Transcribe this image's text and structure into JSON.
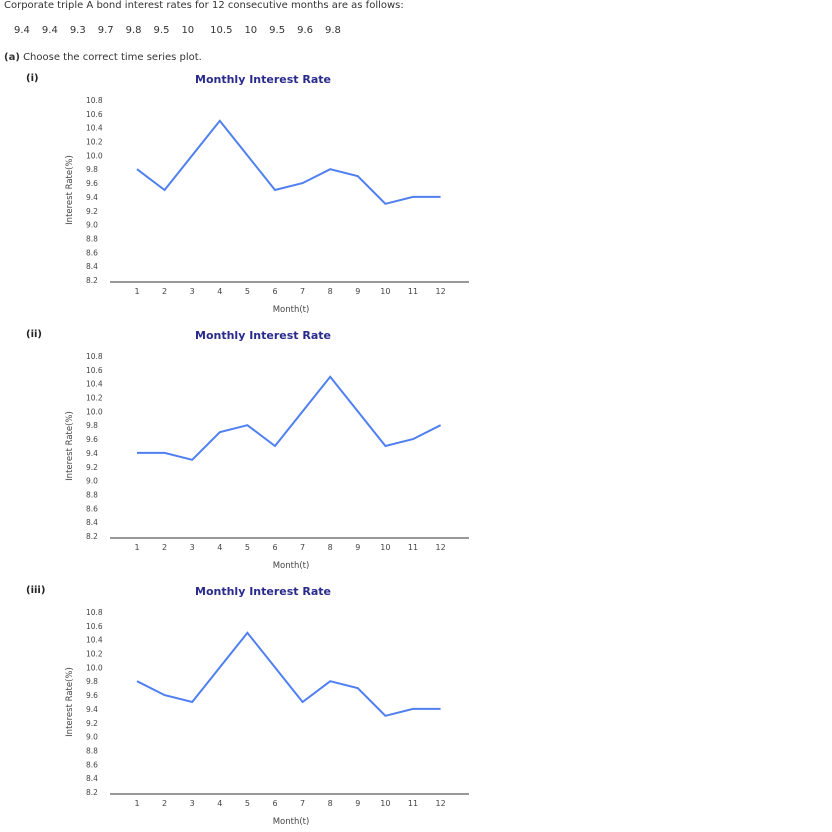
{
  "problem": {
    "intro": "Corporate triple A bond interest rates for 12 consecutive months are as follows:",
    "values": [
      "9.4",
      "9.4",
      "9.3",
      "9.7",
      "9.8",
      "9.5",
      "10",
      "10.5",
      "10",
      "9.5",
      "9.6",
      "9.8"
    ],
    "question_part": "(a)",
    "question_text": " Choose the correct time series plot."
  },
  "options": [
    {
      "label": "(i)",
      "title": "Monthly Interest Rate",
      "ylabel": "Interest Rate(%)",
      "xlabel": "Month(t)"
    },
    {
      "label": "(ii)",
      "title": "Monthly Interest Rate",
      "ylabel": "Interest Rate(%)",
      "xlabel": "Month(t)"
    },
    {
      "label": "(iii)",
      "title": "Monthly Interest Rate",
      "ylabel": "Interest Rate(%)",
      "xlabel": "Month(t)"
    }
  ],
  "colors": {
    "line": "#4f7ff0",
    "title": "#2a2a8c",
    "axis": "#333333"
  },
  "chart_data": [
    {
      "type": "line",
      "title": "Monthly Interest Rate",
      "option": "(i)",
      "xlabel": "Month(t)",
      "ylabel": "Interest Rate(%)",
      "x": [
        1,
        2,
        3,
        4,
        5,
        6,
        7,
        8,
        9,
        10,
        11,
        12
      ],
      "values": [
        9.8,
        9.5,
        10.0,
        10.5,
        10.0,
        9.5,
        9.6,
        9.8,
        9.7,
        9.3,
        9.4,
        9.4
      ],
      "yticks": [
        "10.8",
        "10.6",
        "10.4",
        "10.2",
        "10.0",
        "9.8",
        "9.6",
        "9.4",
        "9.2",
        "9.0",
        "8.8",
        "8.6",
        "8.4",
        "8.2"
      ],
      "ylim": [
        8.2,
        10.8
      ],
      "grid": false,
      "legend": null
    },
    {
      "type": "line",
      "title": "Monthly Interest Rate",
      "option": "(ii)",
      "xlabel": "Month(t)",
      "ylabel": "Interest Rate(%)",
      "x": [
        1,
        2,
        3,
        4,
        5,
        6,
        7,
        8,
        9,
        10,
        11,
        12
      ],
      "values": [
        9.4,
        9.4,
        9.3,
        9.7,
        9.8,
        9.5,
        10.0,
        10.5,
        10.0,
        9.5,
        9.6,
        9.8
      ],
      "yticks": [
        "10.8",
        "10.6",
        "10.4",
        "10.2",
        "10.0",
        "9.8",
        "9.6",
        "9.4",
        "9.2",
        "9.0",
        "8.8",
        "8.6",
        "8.4",
        "8.2"
      ],
      "ylim": [
        8.2,
        10.8
      ],
      "grid": false,
      "legend": null
    },
    {
      "type": "line",
      "title": "Monthly Interest Rate",
      "option": "(iii)",
      "xlabel": "Month(t)",
      "ylabel": "Interest Rate(%)",
      "x": [
        1,
        2,
        3,
        4,
        5,
        6,
        7,
        8,
        9,
        10,
        11,
        12
      ],
      "values": [
        9.8,
        9.6,
        9.5,
        10.0,
        10.5,
        10.0,
        9.5,
        9.8,
        9.7,
        9.3,
        9.4,
        9.4
      ],
      "yticks": [
        "10.8",
        "10.6",
        "10.4",
        "10.2",
        "10.0",
        "9.8",
        "9.6",
        "9.4",
        "9.2",
        "9.0",
        "8.8",
        "8.6",
        "8.4",
        "8.2"
      ],
      "ylim": [
        8.2,
        10.8
      ],
      "grid": false,
      "legend": null
    }
  ]
}
